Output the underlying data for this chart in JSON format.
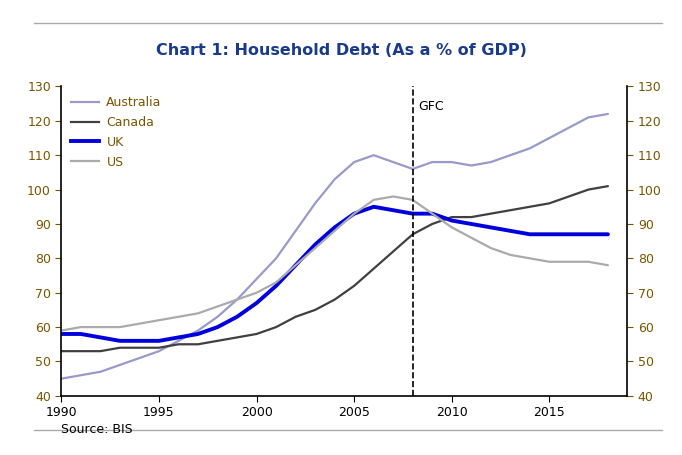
{
  "title": "Chart 1: Household Debt (As a % of GDP)",
  "title_color": "#1a3a8c",
  "source_text": "Source: BIS",
  "gfc_year": 2008,
  "gfc_label": "GFC",
  "ylim": [
    40,
    130
  ],
  "yticks": [
    40,
    50,
    60,
    70,
    80,
    90,
    100,
    110,
    120,
    130
  ],
  "xlim_start": 1990,
  "xlim_end": 2019,
  "xticks": [
    1990,
    1995,
    2000,
    2005,
    2010,
    2015
  ],
  "tick_label_color": "#7a5500",
  "legend_text_color": "#7a5500",
  "series": {
    "Australia": {
      "color": "#9999cc",
      "linewidth": 1.6,
      "years": [
        1990,
        1991,
        1992,
        1993,
        1994,
        1995,
        1996,
        1997,
        1998,
        1999,
        2000,
        2001,
        2002,
        2003,
        2004,
        2005,
        2006,
        2007,
        2008,
        2009,
        2010,
        2011,
        2012,
        2013,
        2014,
        2015,
        2016,
        2017,
        2018
      ],
      "values": [
        45,
        46,
        47,
        49,
        51,
        53,
        56,
        59,
        63,
        68,
        74,
        80,
        88,
        96,
        103,
        108,
        110,
        108,
        106,
        108,
        108,
        107,
        108,
        110,
        112,
        115,
        118,
        121,
        122
      ]
    },
    "Canada": {
      "color": "#404040",
      "linewidth": 1.6,
      "years": [
        1990,
        1991,
        1992,
        1993,
        1994,
        1995,
        1996,
        1997,
        1998,
        1999,
        2000,
        2001,
        2002,
        2003,
        2004,
        2005,
        2006,
        2007,
        2008,
        2009,
        2010,
        2011,
        2012,
        2013,
        2014,
        2015,
        2016,
        2017,
        2018
      ],
      "values": [
        53,
        53,
        53,
        54,
        54,
        54,
        55,
        55,
        56,
        57,
        58,
        60,
        63,
        65,
        68,
        72,
        77,
        82,
        87,
        90,
        92,
        92,
        93,
        94,
        95,
        96,
        98,
        100,
        101
      ]
    },
    "UK": {
      "color": "#0000dd",
      "linewidth": 2.8,
      "years": [
        1990,
        1991,
        1992,
        1993,
        1994,
        1995,
        1996,
        1997,
        1998,
        1999,
        2000,
        2001,
        2002,
        2003,
        2004,
        2005,
        2006,
        2007,
        2008,
        2009,
        2010,
        2011,
        2012,
        2013,
        2014,
        2015,
        2016,
        2017,
        2018
      ],
      "values": [
        58,
        58,
        57,
        56,
        56,
        56,
        57,
        58,
        60,
        63,
        67,
        72,
        78,
        84,
        89,
        93,
        95,
        94,
        93,
        93,
        91,
        90,
        89,
        88,
        87,
        87,
        87,
        87,
        87
      ]
    },
    "US": {
      "color": "#aaaaaa",
      "linewidth": 1.6,
      "years": [
        1990,
        1991,
        1992,
        1993,
        1994,
        1995,
        1996,
        1997,
        1998,
        1999,
        2000,
        2001,
        2002,
        2003,
        2004,
        2005,
        2006,
        2007,
        2008,
        2009,
        2010,
        2011,
        2012,
        2013,
        2014,
        2015,
        2016,
        2017,
        2018
      ],
      "values": [
        59,
        60,
        60,
        60,
        61,
        62,
        63,
        64,
        66,
        68,
        70,
        73,
        78,
        83,
        88,
        93,
        97,
        98,
        97,
        93,
        89,
        86,
        83,
        81,
        80,
        79,
        79,
        79,
        78
      ]
    }
  },
  "legend_order": [
    "Australia",
    "Canada",
    "UK",
    "US"
  ],
  "background_color": "#ffffff",
  "plot_background": "#ffffff",
  "separator_color": "#aaaaaa",
  "spine_color": "#000000"
}
